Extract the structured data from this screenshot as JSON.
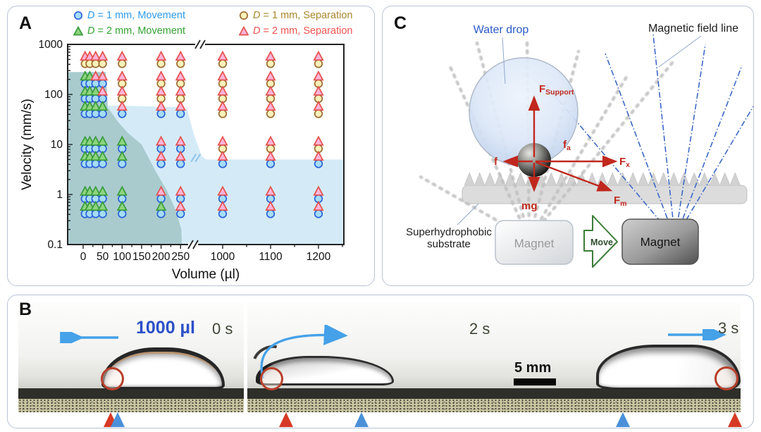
{
  "figure": {
    "panel_a_label": "A",
    "panel_b_label": "B",
    "panel_c_label": "C"
  },
  "panel_a": {
    "legend": [
      {
        "d": "D",
        "rest": " = 1 mm, Movement",
        "marker": "circle",
        "fill": "#a5dcf7",
        "stroke": "#2a62d8",
        "text_color": "#2f9bea"
      },
      {
        "d": "D",
        "rest": " = 1 mm, Separation",
        "marker": "circle",
        "fill": "#f8f2ba",
        "stroke": "#9c6b2f",
        "text_color": "#aa872b"
      },
      {
        "d": "D",
        "rest": " = 2 mm, Movement",
        "marker": "triangle",
        "fill": "#8ed47e",
        "stroke": "#389c3c",
        "text_color": "#33a433"
      },
      {
        "d": "D",
        "rest": " = 2 mm, Separation",
        "marker": "triangle",
        "fill": "#f9b3d7",
        "stroke": "#e4524e",
        "text_color": "#f0534f"
      }
    ]
  },
  "chart_data": {
    "type": "scatter",
    "xlabel": "Volume (µl)",
    "ylabel": "Velocity (mm/s)",
    "y_scale": "log",
    "ylim": [
      0.1,
      1000
    ],
    "x_ticks_left": [
      0,
      50,
      100,
      150,
      200,
      250
    ],
    "x_ticks_right": [
      1000,
      1100,
      1200
    ],
    "y_ticks": [
      0.1,
      1,
      10,
      100,
      1000
    ],
    "axis_break": true,
    "series": [
      {
        "name": "D = 1 mm, Separation",
        "marker": "circle",
        "fill": "#f8f2ba",
        "stroke": "#9c6b2f",
        "rows": [
          {
            "v": 500,
            "vols": [
              5,
              17,
              32,
              50,
              100,
              200,
              250,
              1000,
              1100,
              1200
            ]
          },
          {
            "v": 200,
            "vols": [
              100,
              200,
              250,
              1000,
              1100,
              1200
            ]
          },
          {
            "v": 100,
            "vols": [
              100,
              200,
              250,
              1000,
              1100,
              1200
            ]
          },
          {
            "v": 50,
            "vols": [
              1000,
              1100,
              1200
            ]
          },
          {
            "v": 10,
            "vols": [
              1000,
              1100,
              1200
            ]
          }
        ]
      },
      {
        "name": "D = 1 mm, Movement",
        "marker": "circle",
        "fill": "#a5dcf7",
        "stroke": "#2a62d8",
        "rows": [
          {
            "v": 200,
            "vols": [
              5,
              17,
              32,
              50
            ]
          },
          {
            "v": 100,
            "vols": [
              5,
              17,
              32,
              50
            ]
          },
          {
            "v": 50,
            "vols": [
              5,
              17,
              32,
              50,
              100,
              200,
              250
            ]
          },
          {
            "v": 10,
            "vols": [
              5,
              17,
              32,
              50,
              100,
              200,
              250
            ]
          },
          {
            "v": 5,
            "vols": [
              5,
              17,
              32,
              50,
              100,
              200,
              250,
              1000,
              1100,
              1200
            ]
          },
          {
            "v": 1,
            "vols": [
              5,
              17,
              32,
              50,
              100,
              200,
              250,
              1000,
              1100,
              1200
            ]
          },
          {
            "v": 0.5,
            "vols": [
              5,
              17,
              32,
              50,
              100,
              200,
              250,
              1000,
              1100,
              1200
            ]
          }
        ]
      },
      {
        "name": "D = 2 mm, Movement",
        "marker": "triangle",
        "fill": "#8ed47e",
        "stroke": "#389c3c",
        "rows": [
          {
            "v": 200,
            "vols": [
              5,
              17
            ]
          },
          {
            "v": 100,
            "vols": [
              5,
              17,
              32
            ]
          },
          {
            "v": 50,
            "vols": [
              5,
              17,
              32,
              50
            ]
          },
          {
            "v": 10,
            "vols": [
              5,
              17,
              32,
              50,
              100
            ]
          },
          {
            "v": 5,
            "vols": [
              5,
              17,
              32,
              50,
              100
            ]
          },
          {
            "v": 1,
            "vols": [
              5,
              17,
              32,
              50,
              100
            ]
          },
          {
            "v": 0.5,
            "vols": [
              5,
              17,
              32,
              50,
              100,
              200
            ]
          }
        ]
      },
      {
        "name": "D = 2 mm, Separation",
        "marker": "triangle",
        "fill": "#f9b3d7",
        "stroke": "#e4524e",
        "rows": [
          {
            "v": 500,
            "vols": [
              5,
              17,
              32,
              50,
              100,
              200,
              250,
              1000,
              1100,
              1200
            ]
          },
          {
            "v": 200,
            "vols": [
              32,
              50,
              100,
              200,
              250,
              1000,
              1100,
              1200
            ]
          },
          {
            "v": 100,
            "vols": [
              50,
              100,
              200,
              250,
              1000,
              1100,
              1200
            ]
          },
          {
            "v": 50,
            "vols": [
              100,
              200,
              250,
              1000,
              1100,
              1200
            ]
          },
          {
            "v": 10,
            "vols": [
              200,
              250,
              1000,
              1100,
              1200
            ]
          },
          {
            "v": 5,
            "vols": [
              200,
              250,
              1000,
              1100,
              1200
            ]
          },
          {
            "v": 1,
            "vols": [
              200,
              250,
              1000,
              1100,
              1200
            ]
          },
          {
            "v": 0.5,
            "vols": [
              250,
              1000,
              1100,
              1200
            ]
          }
        ]
      }
    ],
    "regions": [
      {
        "name": "movement-region-1mm",
        "fill": "#d4ebf7",
        "points": [
          [
            -43,
            280
          ],
          [
            58,
            280
          ],
          [
            64,
            60
          ],
          [
            250,
            56
          ],
          [
            360,
            50
          ],
          [
            480,
            16
          ],
          [
            620,
            6
          ],
          [
            700,
            5
          ],
          [
            1253,
            5
          ],
          [
            1253,
            0.1
          ],
          [
            -43,
            0.1
          ]
        ]
      },
      {
        "name": "movement-region-2mm",
        "fill": "rgba(106,156,146,0.40)",
        "points": [
          [
            -43,
            280
          ],
          [
            58,
            280
          ],
          [
            63,
            55
          ],
          [
            90,
            28
          ],
          [
            115,
            17
          ],
          [
            150,
            10
          ],
          [
            185,
            3
          ],
          [
            215,
            1.2
          ],
          [
            237,
            0.5
          ],
          [
            255,
            0.2
          ],
          [
            263,
            0.1
          ],
          [
            -43,
            0.1
          ]
        ]
      }
    ],
    "annotations": {
      "region_break": {
        "volume": 520,
        "velocity": 5.3,
        "color": "#8fc4e8"
      }
    }
  },
  "panel_c": {
    "water_drop_label": "Water drop",
    "field_line_label": "Magnetic field line",
    "substrate_label": "Superhydrophobic substrate",
    "magnet_left_label": "Magnet",
    "magnet_right_label": "Magnet",
    "move_label": "Move",
    "forces": {
      "support": {
        "m": "F",
        "s": "Support"
      },
      "friction": "f",
      "adhesion": {
        "m": "f",
        "s": "a"
      },
      "fx": {
        "m": "F",
        "s": "x"
      },
      "gravity": "mg",
      "magnetic": {
        "m": "F",
        "s": "m"
      }
    },
    "colors": {
      "arrow_red": "#c0281e",
      "field_line_blue": "#3d68c8",
      "water_drop_text": "#2b5ac8"
    }
  },
  "panel_b": {
    "volume_label": "1000 µl",
    "times": [
      "0 s",
      "2 s",
      "3 s"
    ],
    "scale_bar": "5 mm",
    "marker_colors": {
      "red": "#d63a26",
      "blue": "#4a90d9"
    }
  }
}
